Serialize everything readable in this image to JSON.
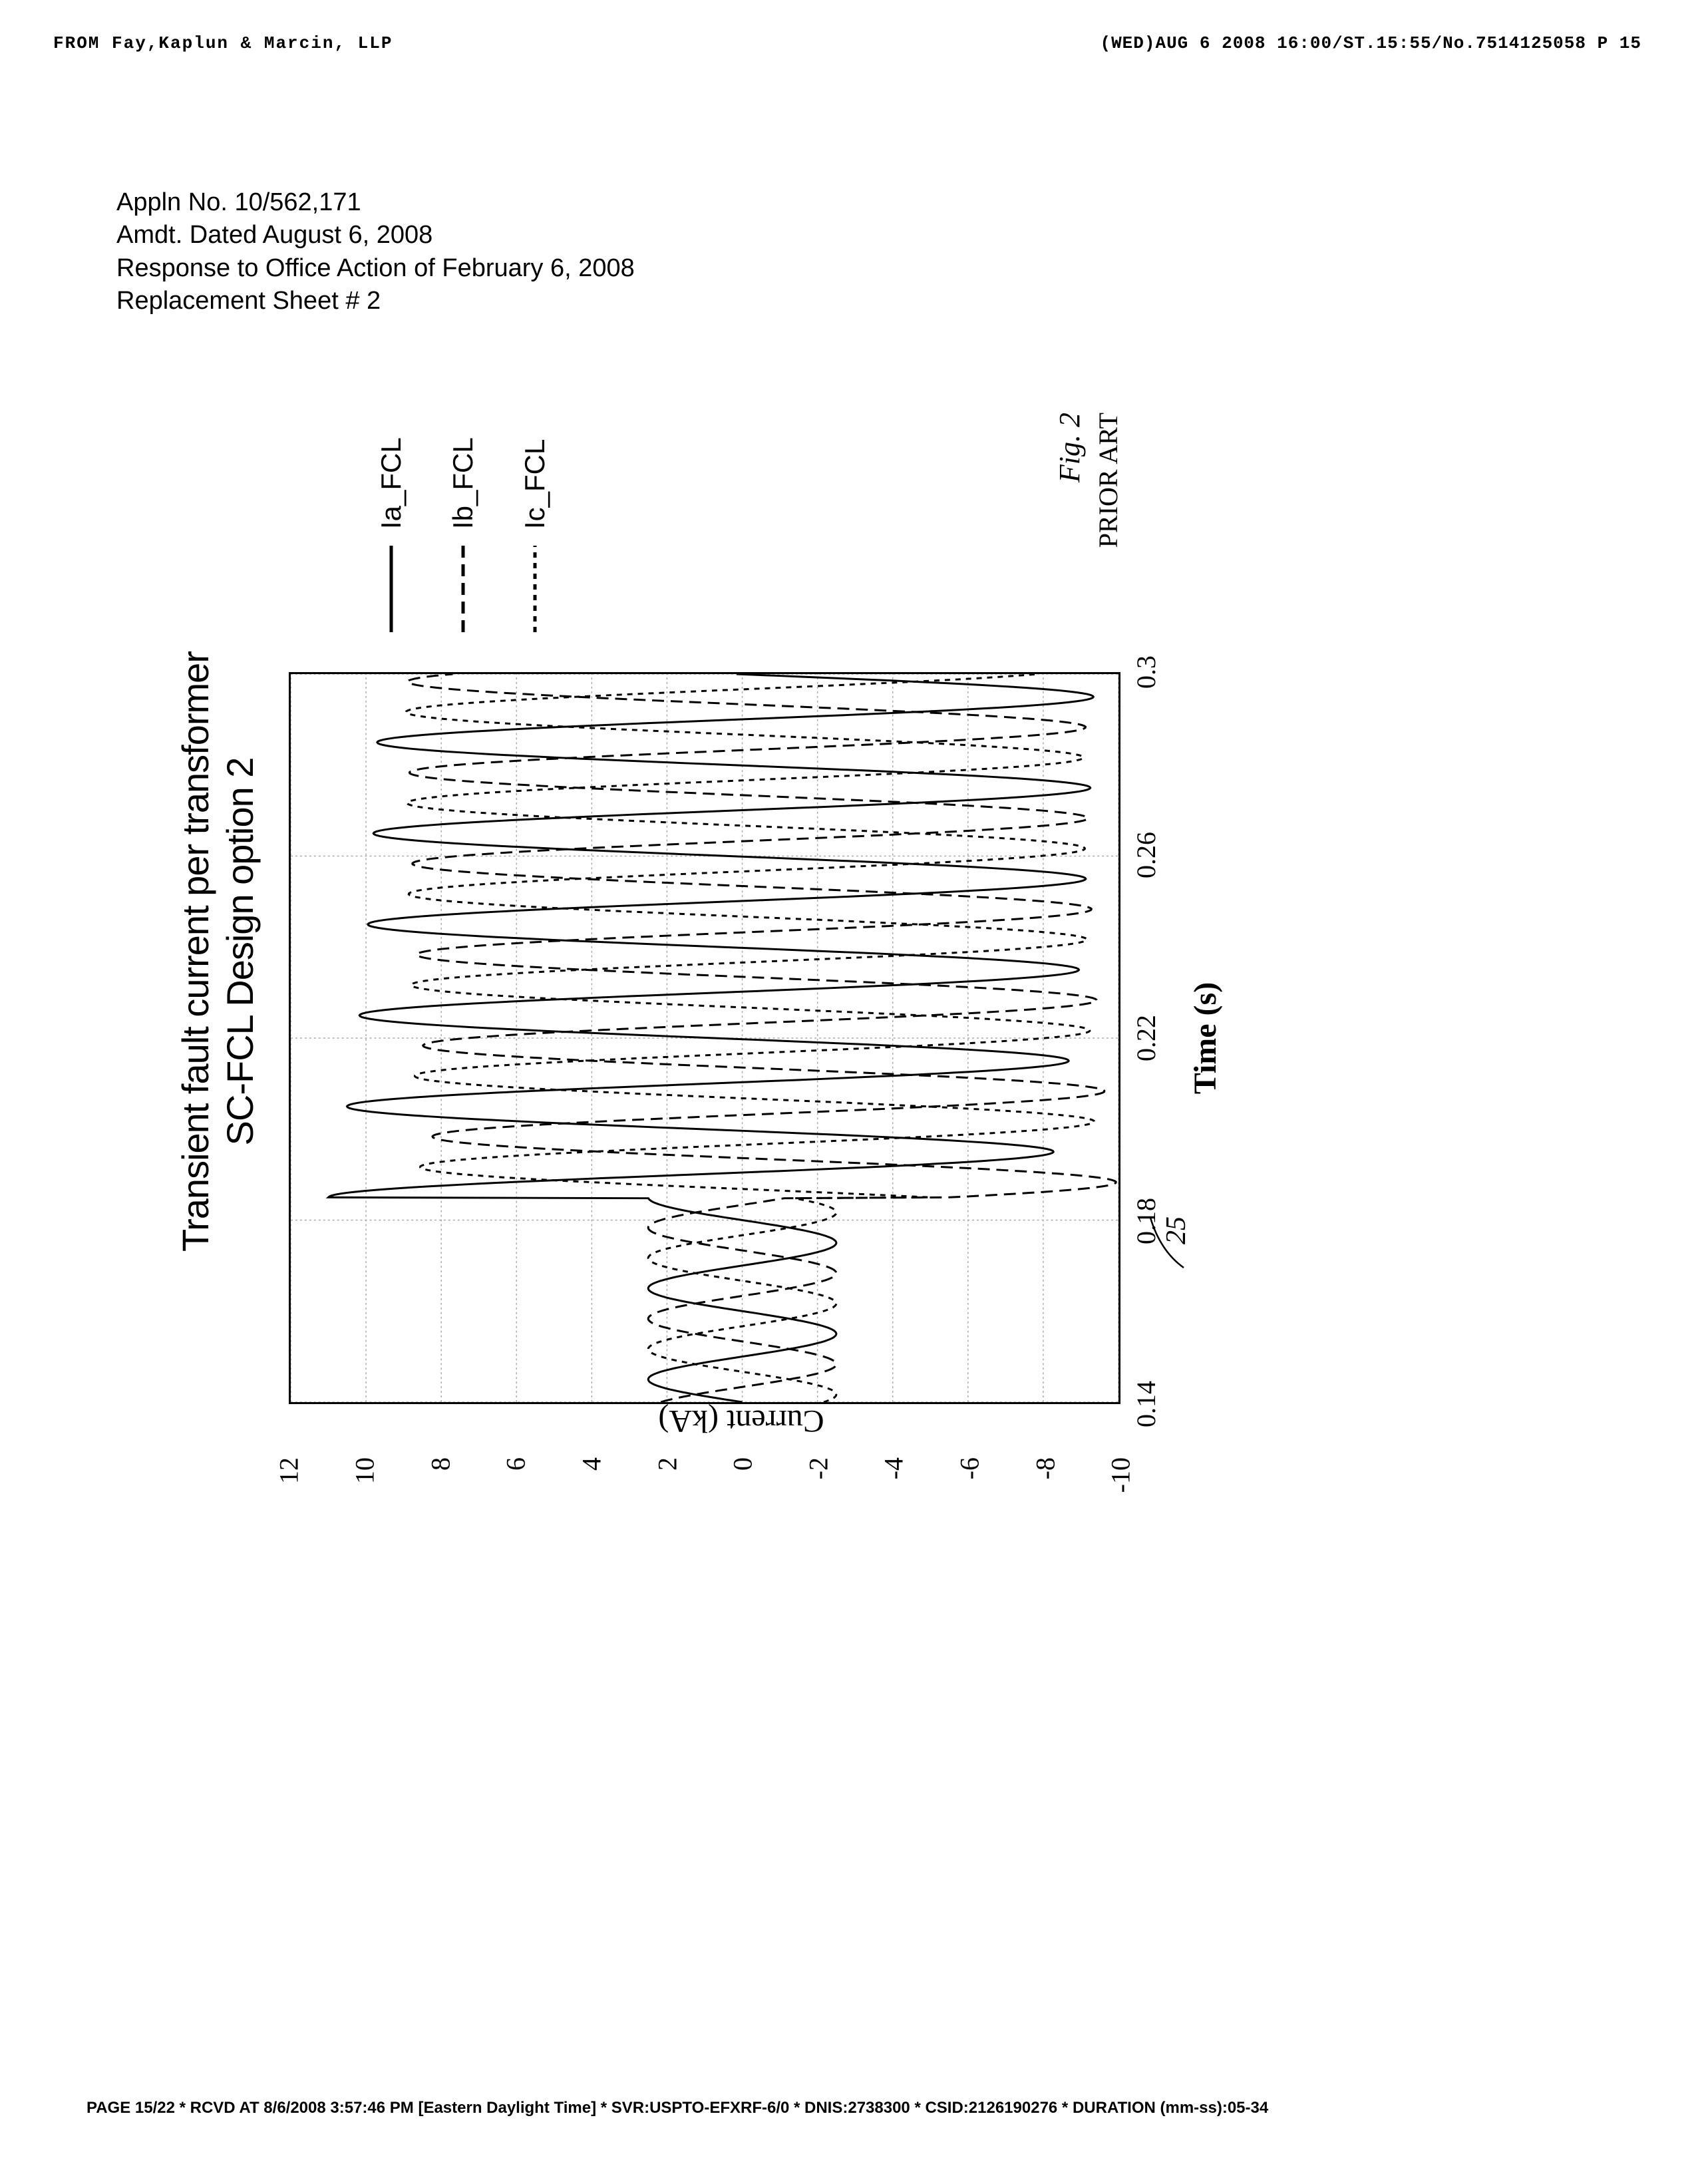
{
  "fax": {
    "from": "FROM Fay,Kaplun & Marcin, LLP",
    "stamp": "(WED)AUG  6 2008 16:00/ST.15:55/No.7514125058 P 15"
  },
  "doc_header": {
    "line1": "Appln No. 10/562,171",
    "line2": "Amdt. Dated August 6, 2008",
    "line3": "Response to Office Action of February 6, 2008",
    "line4": "Replacement Sheet # 2"
  },
  "chart": {
    "type": "line",
    "title_line1": "Transient fault current per transformer",
    "title_line2": "SC-FCL Design option 2",
    "xlabel": "Time (s)",
    "ylabel": "Current (kA)",
    "xlim": [
      0.14,
      0.3
    ],
    "ylim": [
      -10,
      12
    ],
    "xticks": [
      0.14,
      0.18,
      0.22,
      0.26,
      0.3
    ],
    "xtick_labels": [
      "0.14",
      "0.18",
      "0.22",
      "0.26",
      "0.3"
    ],
    "yticks": [
      -10,
      -8,
      -6,
      -4,
      -2,
      0,
      2,
      4,
      6,
      8,
      10,
      12
    ],
    "ytick_labels": [
      "-10",
      "-8",
      "-6",
      "-4",
      "-2",
      "0",
      "2",
      "4",
      "6",
      "8",
      "10",
      "12"
    ],
    "background_color": "#ffffff",
    "grid_color": "#aaaaaa",
    "axis_color": "#000000",
    "title_fontsize": 56,
    "label_fontsize": 48,
    "tick_fontsize": 40,
    "annotation_25": "25",
    "series": [
      {
        "name": "Ia_FCL",
        "label": "Ia_FCL",
        "color": "#000000",
        "line_width": 3,
        "line_style": "solid",
        "pre_fault_amp": 2.5,
        "pre_fault_freq": 50,
        "post_fault_amp": 9.5,
        "post_fault_freq": 50,
        "phase_offset": 0,
        "dc_offset_initial": 1.5,
        "fault_time": 0.185
      },
      {
        "name": "Ib_FCL",
        "label": "Ib_FCL",
        "color": "#000000",
        "line_width": 3,
        "line_style": "dashed",
        "pre_fault_amp": 2.5,
        "pre_fault_freq": 50,
        "post_fault_amp": 9.0,
        "post_fault_freq": 50,
        "phase_offset": 120,
        "dc_offset_initial": -1.0,
        "fault_time": 0.185
      },
      {
        "name": "Ic_FCL",
        "label": "Ic_FCL",
        "color": "#000000",
        "line_width": 3,
        "line_style": "dash-short",
        "pre_fault_amp": 2.5,
        "pre_fault_freq": 50,
        "post_fault_amp": 9.0,
        "post_fault_freq": 50,
        "phase_offset": 240,
        "dc_offset_initial": -0.5,
        "fault_time": 0.185
      }
    ],
    "legend_box": {
      "border_color": "#000000",
      "border_width": 2
    }
  },
  "caption": {
    "fig": "Fig. 2",
    "prior": "PRIOR ART"
  },
  "footer": "PAGE 15/22 * RCVD AT 8/6/2008 3:57:46 PM [Eastern Daylight Time] * SVR:USPTO-EFXRF-6/0 * DNIS:2738300 * CSID:2126190276 * DURATION (mm-ss):05-34"
}
